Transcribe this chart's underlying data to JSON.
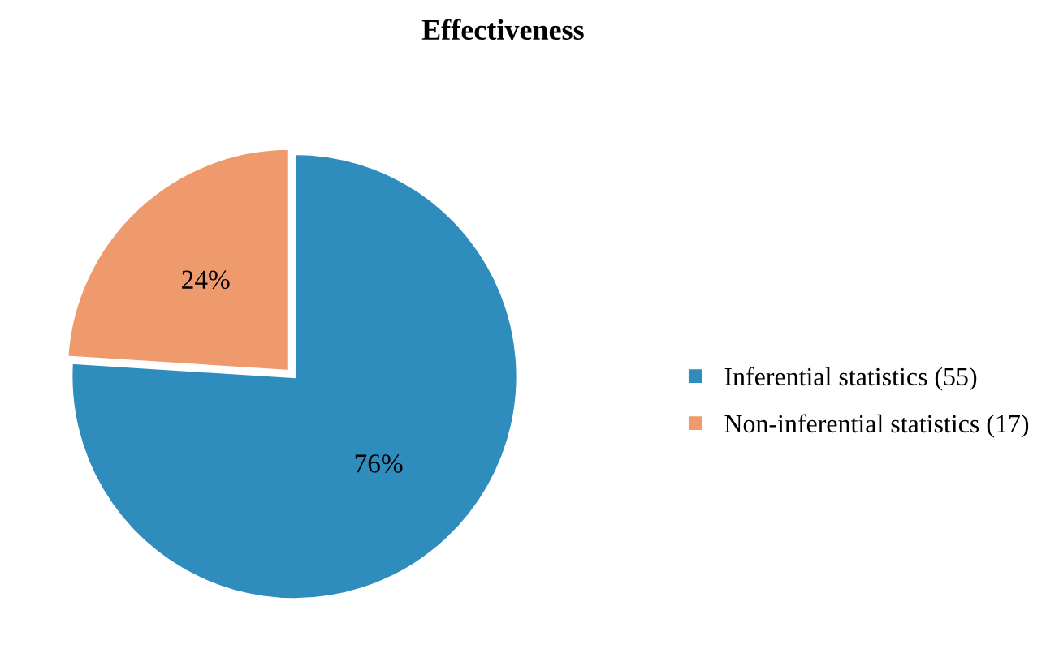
{
  "chart_data": {
    "type": "pie",
    "title": "Effectiveness",
    "categories": [
      "Inferential statistics (55)",
      "Non-inferential statistics (17)"
    ],
    "values": [
      76,
      24
    ],
    "colors": [
      "#2f8dbe",
      "#ef9a6c"
    ],
    "value_labels": [
      "76%",
      "24%"
    ],
    "legend": "right"
  }
}
